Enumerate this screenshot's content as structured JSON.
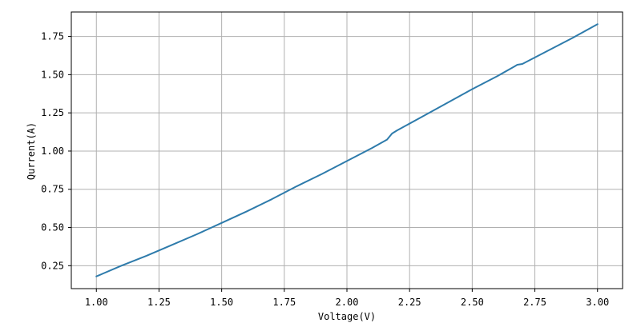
{
  "chart_data": {
    "type": "line",
    "title": "",
    "xlabel": "Voltage(V)",
    "ylabel": "Qurrent(A)",
    "xlim": [
      0.9,
      3.1
    ],
    "ylim": [
      0.1,
      1.91
    ],
    "xticks": [
      1.0,
      1.25,
      1.5,
      1.75,
      2.0,
      2.25,
      2.5,
      2.75,
      3.0
    ],
    "xtick_labels": [
      "1.00",
      "1.25",
      "1.50",
      "1.75",
      "2.00",
      "2.25",
      "2.50",
      "2.75",
      "3.00"
    ],
    "yticks": [
      0.25,
      0.5,
      0.75,
      1.0,
      1.25,
      1.5,
      1.75
    ],
    "ytick_labels": [
      "0.25",
      "0.50",
      "0.75",
      "1.00",
      "1.25",
      "1.50",
      "1.75"
    ],
    "grid": true,
    "line_color": "#2e7bab",
    "series": [
      {
        "x": [
          1.0,
          1.1,
          1.2,
          1.3,
          1.4,
          1.5,
          1.6,
          1.7,
          1.8,
          1.9,
          2.0,
          2.1,
          2.16,
          2.18,
          2.2,
          2.3,
          2.4,
          2.5,
          2.6,
          2.67,
          2.68,
          2.7,
          2.8,
          2.9,
          3.0
        ],
        "y": [
          0.18,
          0.25,
          0.315,
          0.385,
          0.455,
          0.53,
          0.605,
          0.685,
          0.77,
          0.85,
          0.935,
          1.02,
          1.075,
          1.115,
          1.135,
          1.225,
          1.315,
          1.405,
          1.49,
          1.555,
          1.565,
          1.57,
          1.655,
          1.74,
          1.83
        ]
      }
    ]
  }
}
